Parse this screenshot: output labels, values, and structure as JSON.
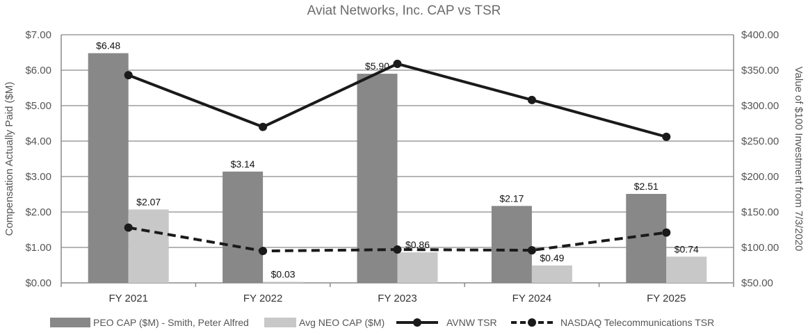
{
  "chart_data": {
    "type": "bar",
    "title": "Aviat Networks, Inc. CAP vs TSR",
    "categories": [
      "FY 2021",
      "FY 2022",
      "FY 2023",
      "FY 2024",
      "FY 2025"
    ],
    "ylabel": "Compensation Actually Paid ($M)",
    "y2label": "Value of $100 Investment from 7/3/2020",
    "ylim": [
      0,
      7
    ],
    "y2lim": [
      50,
      400
    ],
    "yticks": [
      "$0.00",
      "$1.00",
      "$2.00",
      "$3.00",
      "$4.00",
      "$5.00",
      "$6.00",
      "$7.00"
    ],
    "y2ticks": [
      "$50.00",
      "$100.00",
      "$150.00",
      "$200.00",
      "$250.00",
      "$300.00",
      "$350.00",
      "$400.00"
    ],
    "bar_series": [
      {
        "name": "PEO CAP ($M) - Smith, Peter Alfred",
        "color": "#888888",
        "values": [
          6.48,
          3.14,
          5.9,
          2.17,
          2.51
        ],
        "labels": [
          "$6.48",
          "$3.14",
          "$5.90",
          "$2.17",
          "$2.51"
        ]
      },
      {
        "name": "Avg NEO CAP ($M)",
        "color": "#c8c8c8",
        "values": [
          2.07,
          0.03,
          0.86,
          0.49,
          0.74
        ],
        "labels": [
          "$2.07",
          "$0.03",
          "$0.86",
          "$0.49",
          "$0.74"
        ]
      }
    ],
    "line_series": [
      {
        "name": "AVNW TSR",
        "color": "#1a1a1a",
        "style": "solid",
        "axis": "right",
        "values": [
          343,
          270,
          359,
          308,
          256
        ]
      },
      {
        "name": "NASDAQ Telecommunications TSR",
        "color": "#1a1a1a",
        "style": "dashed",
        "axis": "right",
        "values": [
          128,
          95,
          97,
          96,
          121
        ]
      }
    ],
    "grid": true,
    "legend_position": "bottom"
  }
}
